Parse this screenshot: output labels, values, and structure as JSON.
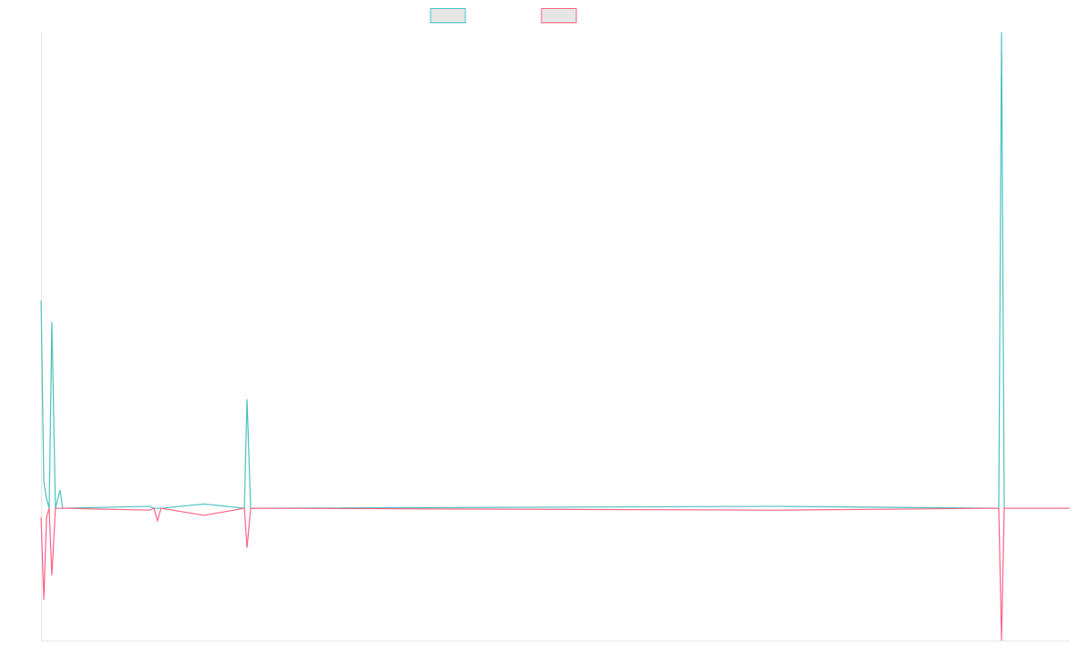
{
  "chart_data": {
    "type": "line",
    "x": [
      0,
      0.26,
      0.52,
      0.78,
      1.04,
      1.39,
      1.83,
      2.09,
      10.53,
      10.97,
      11.31,
      11.66,
      15.84,
      19.76,
      20.02,
      20.37,
      71.45,
      93.12,
      93.39,
      93.65,
      100
    ],
    "series": [
      {
        "color": "#4bc0c0",
        "values": [
          43.6,
          5.6,
          2,
          0,
          39.1,
          0,
          3.8,
          0,
          0.4,
          0,
          0,
          0,
          0.9,
          0,
          22.9,
          0,
          0.4,
          0,
          100,
          0,
          0
        ]
      },
      {
        "color": "#ff6384",
        "values": [
          -1.9,
          -19.2,
          -1.9,
          0,
          -14.1,
          0,
          0,
          0,
          -0.4,
          0,
          -2.6,
          0,
          -1.5,
          0,
          -8.3,
          0,
          -0.4,
          0,
          -27.8,
          0,
          0
        ]
      }
    ],
    "xlim": [
      0,
      100
    ],
    "ylim": [
      -27.8,
      100
    ]
  }
}
